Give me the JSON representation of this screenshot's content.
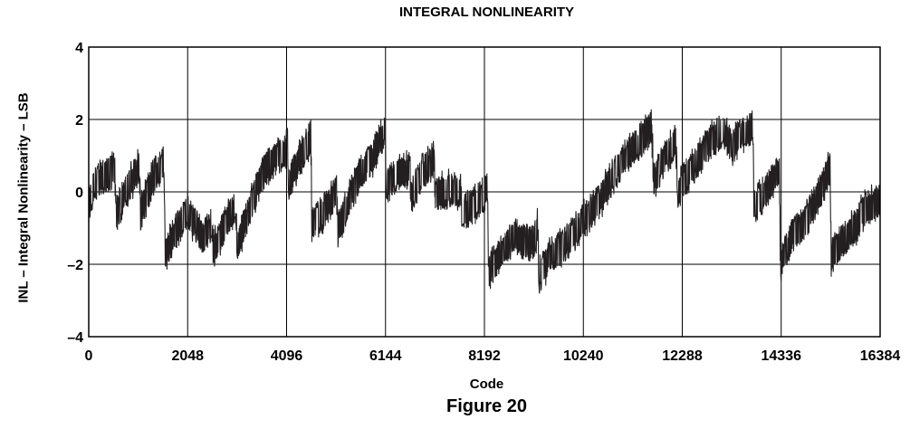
{
  "figure_label": "Figure 20",
  "chart_data": {
    "type": "line",
    "title": "INTEGRAL NONLINEARITY",
    "xlabel": "Code",
    "ylabel": "INL – Integral Nonlinearity – LSB",
    "xlim": [
      0,
      16384
    ],
    "ylim": [
      -4,
      4
    ],
    "x_ticks": [
      0,
      2048,
      4096,
      6144,
      8192,
      10240,
      12288,
      14336,
      16384
    ],
    "x_tick_labels": [
      "0",
      "2048",
      "4096",
      "6144",
      "8192",
      "10240",
      "12288",
      "14336",
      "16384"
    ],
    "y_ticks": [
      -4,
      -2,
      0,
      2,
      4
    ],
    "y_tick_labels": [
      "–4",
      "–2",
      "0",
      "2",
      "4"
    ],
    "grid": true,
    "line_color": "#231f20",
    "series": [
      {
        "points": [
          [
            0,
            -0.4
          ],
          [
            100,
            0.2
          ],
          [
            300,
            0.4
          ],
          [
            540,
            0.6
          ],
          [
            560,
            -0.7
          ],
          [
            800,
            0.1
          ],
          [
            1050,
            0.7
          ],
          [
            1070,
            -0.6
          ],
          [
            1300,
            0.3
          ],
          [
            1560,
            0.8
          ],
          [
            1580,
            -1.7
          ],
          [
            1850,
            -1.0
          ],
          [
            2050,
            -0.5
          ],
          [
            2150,
            -0.8
          ],
          [
            2350,
            -1.2
          ],
          [
            2550,
            -0.9
          ],
          [
            2580,
            -1.6
          ],
          [
            2800,
            -1.0
          ],
          [
            3050,
            -0.3
          ],
          [
            3070,
            -1.5
          ],
          [
            3350,
            -0.4
          ],
          [
            3600,
            0.5
          ],
          [
            3850,
            0.9
          ],
          [
            4050,
            1.1
          ],
          [
            4120,
            1.3
          ],
          [
            4140,
            0.2
          ],
          [
            4400,
            1.0
          ],
          [
            4600,
            1.5
          ],
          [
            4620,
            -0.9
          ],
          [
            4900,
            -0.5
          ],
          [
            5130,
            0.0
          ],
          [
            5150,
            -1.1
          ],
          [
            5400,
            -0.2
          ],
          [
            5650,
            0.6
          ],
          [
            5900,
            1.0
          ],
          [
            6140,
            1.8
          ],
          [
            6160,
            0.2
          ],
          [
            6400,
            0.5
          ],
          [
            6650,
            0.6
          ],
          [
            6680,
            -0.1
          ],
          [
            6900,
            0.5
          ],
          [
            7150,
            0.9
          ],
          [
            7170,
            -0.1
          ],
          [
            7450,
            0.1
          ],
          [
            7700,
            0.0
          ],
          [
            7720,
            -0.6
          ],
          [
            7950,
            -0.4
          ],
          [
            8200,
            -0.1
          ],
          [
            8260,
            0.2
          ],
          [
            8280,
            -2.2
          ],
          [
            8550,
            -1.7
          ],
          [
            8800,
            -1.2
          ],
          [
            9000,
            -1.4
          ],
          [
            9250,
            -1.3
          ],
          [
            9300,
            -0.9
          ],
          [
            9320,
            -2.3
          ],
          [
            9550,
            -1.8
          ],
          [
            9800,
            -1.5
          ],
          [
            10000,
            -1.2
          ],
          [
            10300,
            -0.7
          ],
          [
            10600,
            -0.2
          ],
          [
            10900,
            0.6
          ],
          [
            11200,
            1.1
          ],
          [
            11500,
            1.5
          ],
          [
            11650,
            1.8
          ],
          [
            11700,
            0.3
          ],
          [
            11900,
            0.9
          ],
          [
            12150,
            1.4
          ],
          [
            12200,
            0.0
          ],
          [
            12450,
            0.6
          ],
          [
            12700,
            1.1
          ],
          [
            12900,
            1.4
          ],
          [
            13150,
            1.7
          ],
          [
            13300,
            1.2
          ],
          [
            13500,
            1.6
          ],
          [
            13700,
            1.7
          ],
          [
            13750,
            1.9
          ],
          [
            13770,
            -0.4
          ],
          [
            14000,
            0.0
          ],
          [
            14300,
            0.6
          ],
          [
            14320,
            -2.0
          ],
          [
            14600,
            -1.1
          ],
          [
            14800,
            -0.9
          ],
          [
            15000,
            -0.4
          ],
          [
            15250,
            0.3
          ],
          [
            15350,
            0.7
          ],
          [
            15370,
            -1.8
          ],
          [
            15600,
            -1.4
          ],
          [
            15900,
            -0.9
          ],
          [
            16080,
            -0.4
          ],
          [
            16384,
            -0.3
          ]
        ]
      }
    ]
  }
}
